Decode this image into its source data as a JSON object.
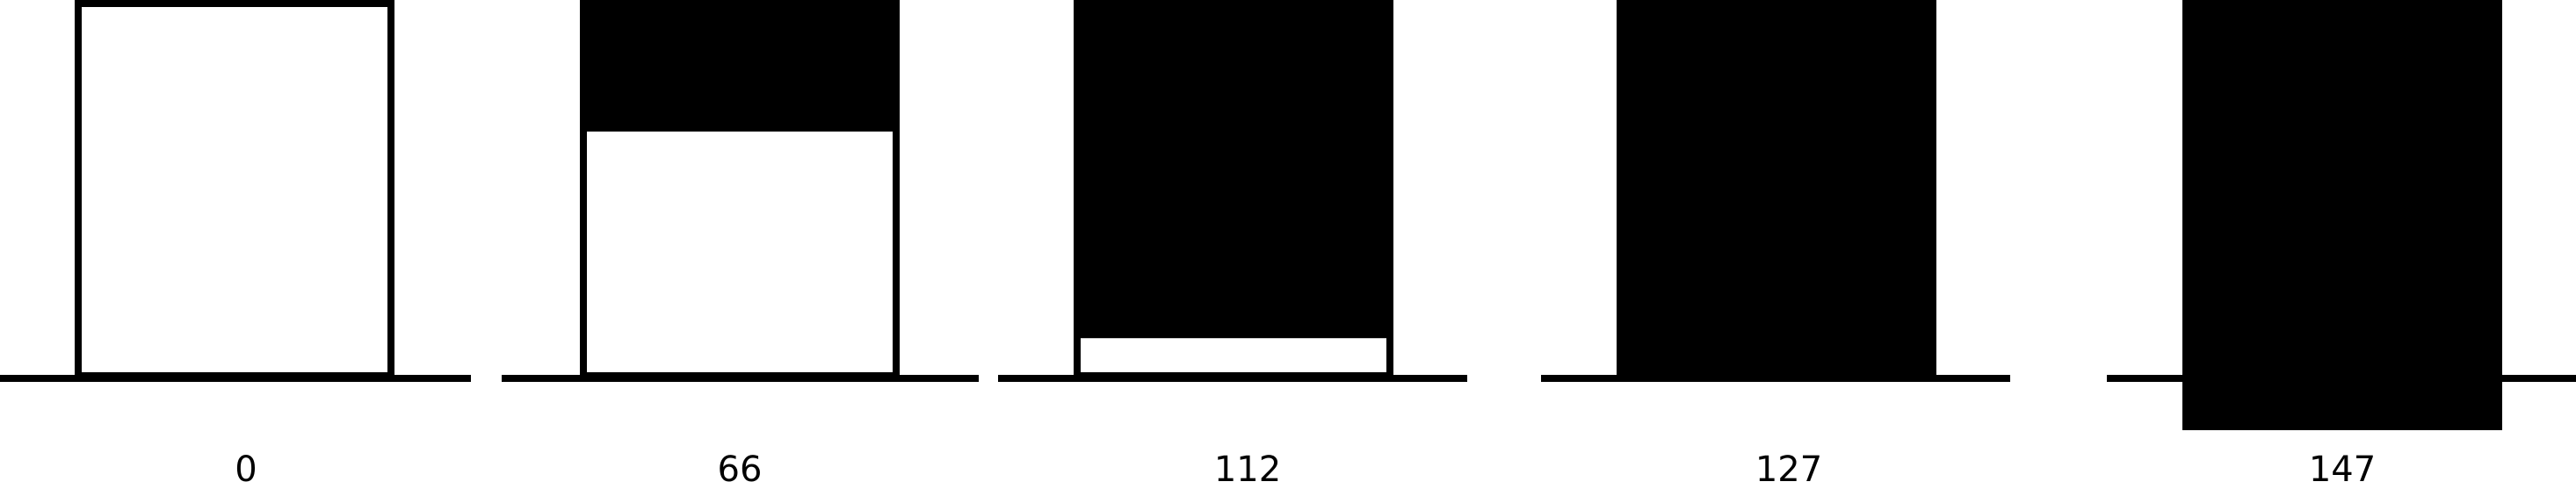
{
  "colors": {
    "fill": "#000000",
    "background": "#ffffff"
  },
  "panels": [
    {
      "label": "0",
      "fill_fraction": 0.0,
      "overflow": false
    },
    {
      "label": "66",
      "fill_fraction": 0.35,
      "overflow": false
    },
    {
      "label": "112",
      "fill_fraction": 0.9,
      "overflow": false
    },
    {
      "label": "127",
      "fill_fraction": 1.0,
      "overflow": false
    },
    {
      "label": "147",
      "fill_fraction": 1.0,
      "overflow": true
    }
  ]
}
